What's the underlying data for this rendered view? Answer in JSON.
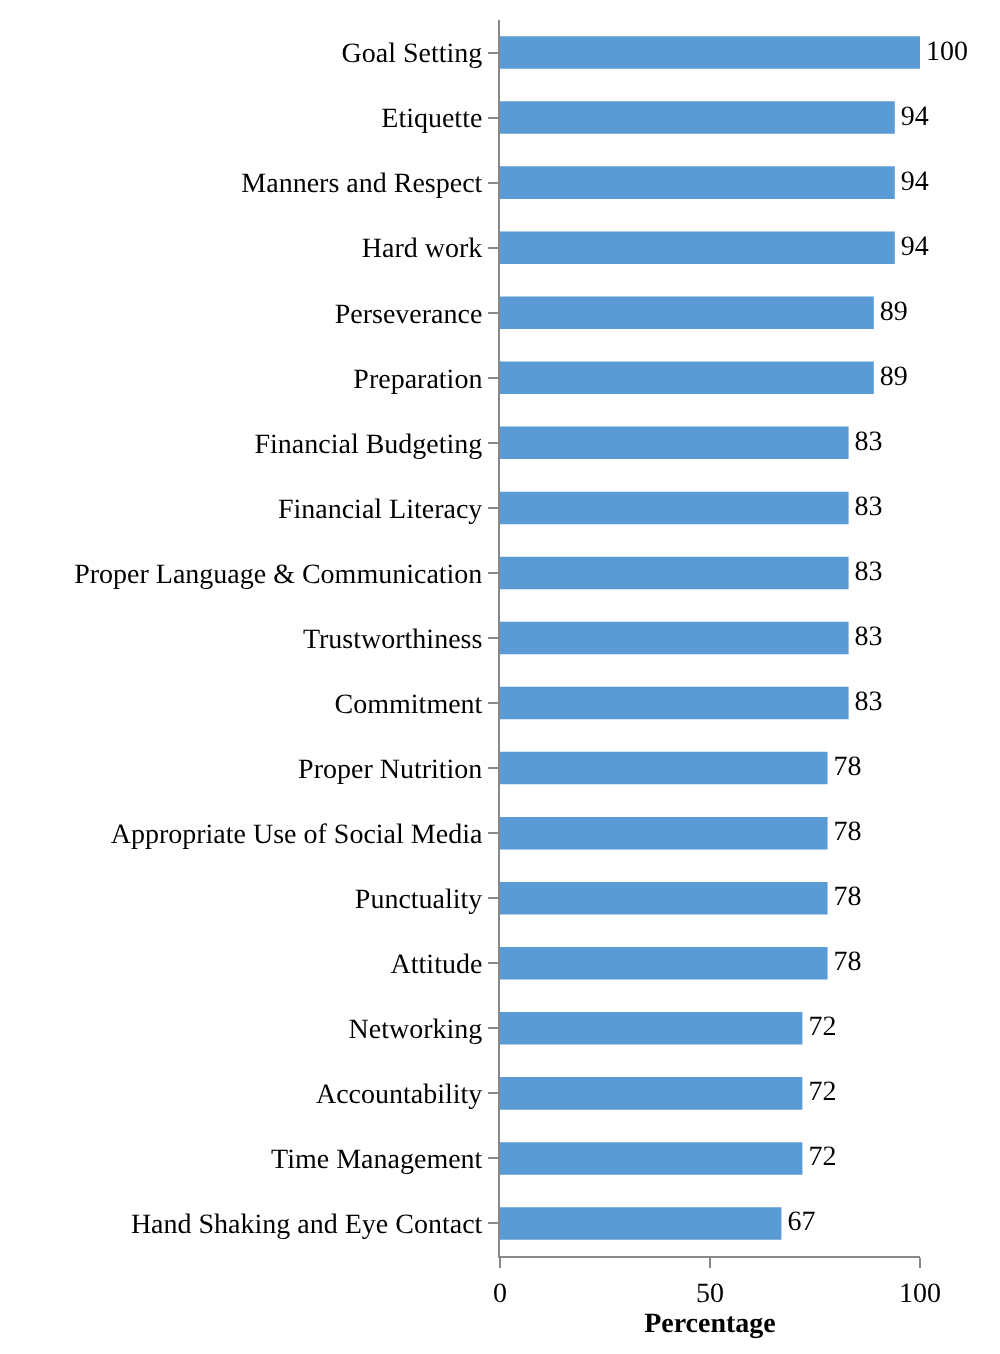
{
  "chart_data": {
    "type": "bar",
    "orientation": "horizontal",
    "xlabel": "Percentage",
    "categories": [
      "Goal Setting",
      "Etiquette",
      "Manners and Respect",
      "Hard work",
      "Perseverance",
      "Preparation",
      "Financial Budgeting",
      "Financial Literacy",
      "Proper Language & Communication",
      "Trustworthiness",
      "Commitment",
      "Proper Nutrition",
      "Appropriate Use of Social Media",
      "Punctuality",
      "Attitude",
      "Networking",
      "Accountability",
      "Time Management",
      "Hand Shaking and Eye Contact"
    ],
    "values": [
      100,
      94,
      94,
      94,
      89,
      89,
      83,
      83,
      83,
      83,
      83,
      78,
      78,
      78,
      78,
      72,
      72,
      72,
      67
    ],
    "color": "#5b9bd5",
    "xlim": [
      0,
      100
    ],
    "xticks": [
      0,
      50,
      100
    ],
    "data_labels": true
  }
}
